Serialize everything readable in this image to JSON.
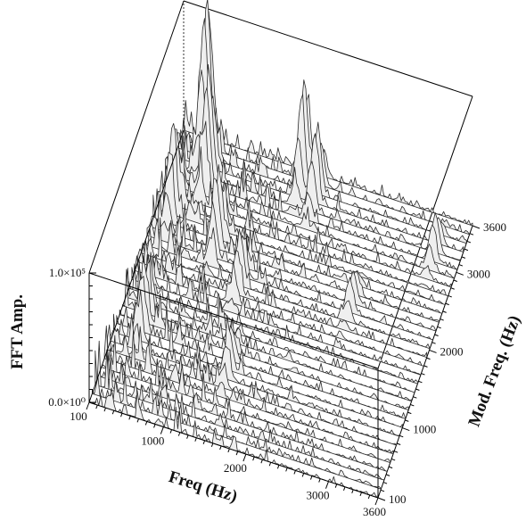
{
  "chart_data": {
    "type": "waterfall-3d",
    "title": "",
    "zlabel": "FFT Amp.",
    "xlabel": "Freq (Hz)",
    "ylabel": "Mod. Freq. (Hz)",
    "z_ticks": [
      "0.0×10⁰",
      "1.0×10⁵"
    ],
    "x_ticks": [
      "100",
      "1000",
      "2000",
      "3000",
      "3600"
    ],
    "y_ticks": [
      "100",
      "1000",
      "2000",
      "3000",
      "3600"
    ],
    "x_range": [
      100,
      3600
    ],
    "y_range": [
      100,
      3600
    ],
    "z_range": [
      0,
      100000
    ],
    "trace_count": 32,
    "colors": {
      "trace_line": "#2b2b2b",
      "trace_fill": "#efefef",
      "box": "#000000"
    },
    "peaks": [
      {
        "x": 420,
        "y": 3450,
        "z": 115000
      },
      {
        "x": 560,
        "y": 3100,
        "z": 80000
      },
      {
        "x": 1600,
        "y": 3450,
        "z": 75000
      },
      {
        "x": 1800,
        "y": 3300,
        "z": 55000
      },
      {
        "x": 3300,
        "y": 3100,
        "z": 30000
      },
      {
        "x": 300,
        "y": 2600,
        "z": 70000
      },
      {
        "x": 900,
        "y": 2400,
        "z": 55000
      },
      {
        "x": 1300,
        "y": 2000,
        "z": 40000
      },
      {
        "x": 2600,
        "y": 2200,
        "z": 25000
      },
      {
        "x": 400,
        "y": 1200,
        "z": 45000
      },
      {
        "x": 1500,
        "y": 1000,
        "z": 30000
      }
    ]
  }
}
